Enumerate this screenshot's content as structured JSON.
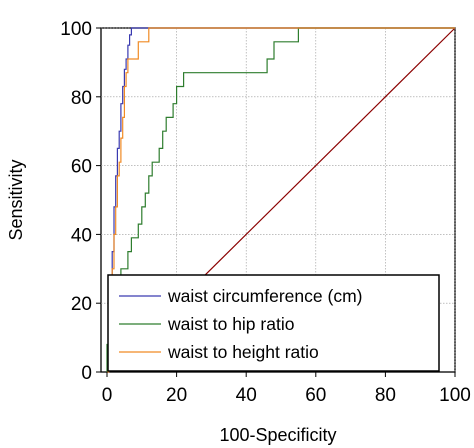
{
  "chart_data": {
    "type": "line",
    "title": "",
    "xlabel": "100-Specificity",
    "ylabel": "Sensitivity",
    "xlim": [
      0,
      100
    ],
    "ylim": [
      0,
      100
    ],
    "xticks": [
      0,
      20,
      40,
      60,
      80,
      100
    ],
    "yticks": [
      0,
      20,
      40,
      60,
      80,
      100
    ],
    "x_tick_labels": [
      "0",
      "20",
      "40",
      "60",
      "80",
      "100"
    ],
    "y_tick_labels": [
      "0",
      "20",
      "40",
      "60",
      "80",
      "100"
    ],
    "grid": true,
    "legend_position": "bottom-right",
    "reference_line": {
      "x": [
        0,
        100
      ],
      "y": [
        0,
        100
      ],
      "color": "#8b0000"
    },
    "series": [
      {
        "name": "waist circumference (cm)",
        "color": "#3a3ab0",
        "x": [
          0,
          0.5,
          0.5,
          1,
          1,
          1.5,
          1.5,
          2,
          2,
          2.5,
          2.5,
          3,
          3,
          3.5,
          3.5,
          4,
          4,
          4.5,
          4.5,
          5,
          5,
          5.5,
          5.5,
          6,
          6,
          6.5,
          6.5,
          7,
          7,
          8,
          8,
          100
        ],
        "y": [
          0,
          0,
          8,
          8,
          22,
          22,
          35,
          35,
          48,
          48,
          57,
          57,
          65,
          65,
          70,
          70,
          78,
          78,
          83,
          83,
          88,
          88,
          91,
          91,
          95,
          95,
          98,
          98,
          100,
          100,
          100,
          100
        ]
      },
      {
        "name": "waist to hip ratio",
        "color": "#2e7d2e",
        "x": [
          0,
          0,
          1,
          1,
          2,
          2,
          3,
          3,
          4,
          4,
          6,
          6,
          7,
          7,
          9,
          9,
          10,
          10,
          11,
          11,
          12,
          12,
          13,
          13,
          15,
          15,
          16,
          16,
          17,
          17,
          19,
          19,
          20,
          20,
          22,
          22,
          23,
          23,
          24,
          24,
          46,
          46,
          47,
          47,
          48,
          48,
          55,
          55,
          56,
          100
        ],
        "y": [
          0,
          8,
          8,
          17,
          17,
          22,
          22,
          26,
          26,
          30,
          30,
          35,
          35,
          39,
          39,
          43,
          43,
          48,
          48,
          52,
          52,
          57,
          57,
          61,
          61,
          65,
          65,
          70,
          70,
          74,
          74,
          78,
          78,
          83,
          83,
          87,
          87,
          87,
          87,
          87,
          87,
          91,
          91,
          91,
          91,
          96,
          96,
          100,
          100,
          100
        ]
      },
      {
        "name": "waist to height ratio",
        "color": "#f08a24",
        "x": [
          0,
          0.5,
          0.5,
          1,
          1,
          1.5,
          1.5,
          2,
          2,
          2.5,
          2.5,
          3,
          3,
          3.5,
          3.5,
          4,
          4,
          4.5,
          4.5,
          5,
          5,
          5.5,
          5.5,
          6,
          6,
          7,
          7,
          9,
          9,
          10,
          10,
          12,
          12,
          100
        ],
        "y": [
          0,
          0,
          10,
          10,
          22,
          22,
          30,
          30,
          40,
          40,
          48,
          48,
          57,
          57,
          61,
          61,
          68,
          68,
          74,
          74,
          83,
          83,
          87,
          87,
          91,
          91,
          91,
          91,
          96,
          96,
          96,
          96,
          100,
          100
        ]
      }
    ]
  }
}
